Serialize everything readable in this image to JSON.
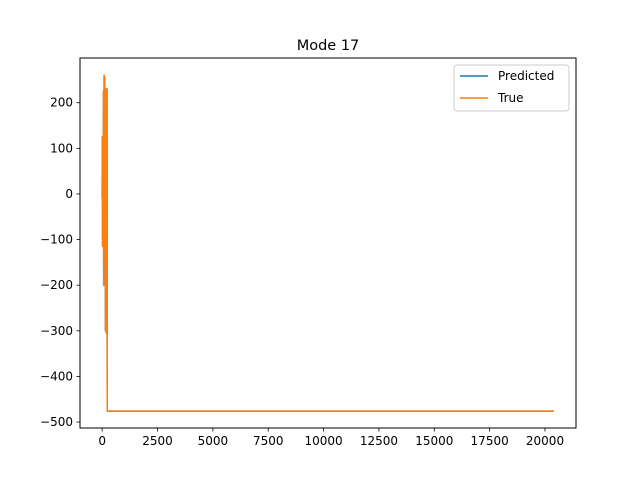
{
  "chart_data": {
    "type": "line",
    "title": "Mode 17",
    "xlabel": "",
    "ylabel": "",
    "xlim": [
      -1000,
      21400
    ],
    "ylim": [
      -513,
      298
    ],
    "x_ticks": [
      0,
      2500,
      5000,
      7500,
      10000,
      12500,
      15000,
      17500,
      20000
    ],
    "y_ticks": [
      200,
      100,
      0,
      -100,
      -200,
      -300,
      -400,
      -500
    ],
    "grid": false,
    "legend_placement": "top-right",
    "series": [
      {
        "name": "Predicted",
        "color": "#1f77b4",
        "x": [
          0,
          10,
          20,
          30,
          40,
          50,
          60,
          70,
          80,
          90,
          100,
          110,
          120,
          130,
          140,
          150,
          160,
          170,
          180,
          190,
          200,
          210,
          220,
          230,
          240,
          260,
          20400
        ],
        "y": [
          -10,
          125,
          -115,
          110,
          40,
          -90,
          225,
          -200,
          160,
          260,
          -50,
          40,
          255,
          -150,
          200,
          -300,
          225,
          -45,
          230,
          -305,
          110,
          -150,
          230,
          -475,
          -476,
          -476,
          -476
        ]
      },
      {
        "name": "True",
        "color": "#ff7f0e",
        "x": [
          0,
          10,
          20,
          30,
          40,
          50,
          60,
          70,
          80,
          90,
          100,
          110,
          120,
          130,
          140,
          150,
          160,
          170,
          180,
          190,
          200,
          210,
          220,
          230,
          240,
          260,
          20400
        ],
        "y": [
          -10,
          125,
          -115,
          110,
          40,
          -90,
          225,
          -200,
          160,
          260,
          -50,
          40,
          255,
          -150,
          200,
          -300,
          225,
          -45,
          230,
          -305,
          110,
          -150,
          230,
          -475,
          -476,
          -476,
          -476
        ]
      }
    ]
  }
}
